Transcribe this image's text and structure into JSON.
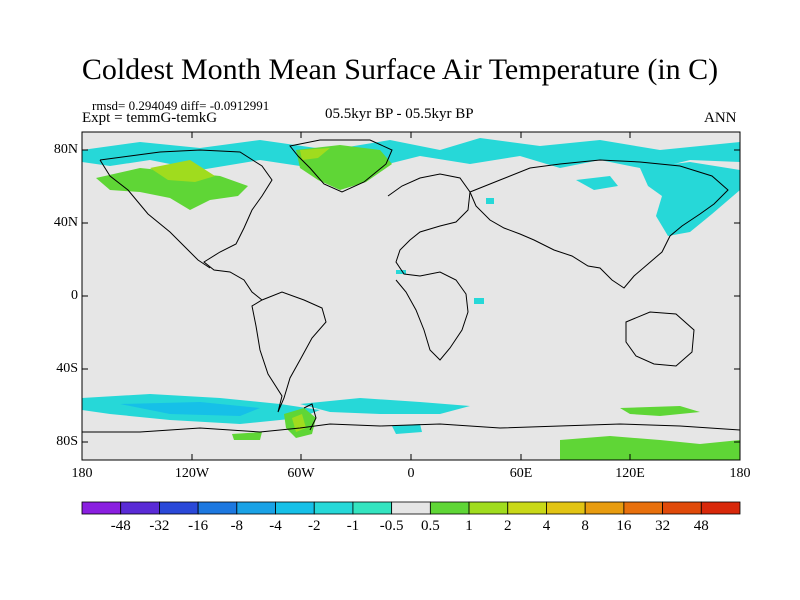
{
  "title": "Coldest Month Mean Surface Air Temperature (in C)",
  "stats_text": "rmsd= 0.294049 diff= -0.0912991",
  "expt_text": "Expt = temmG-temkG",
  "period_text": "05.5kyr BP - 05.5kyr BP",
  "season_text": "ANN",
  "lat_labels": [
    "80N",
    "40N",
    "0",
    "40S",
    "80S"
  ],
  "lon_labels": [
    "180",
    "120W",
    "60W",
    "0",
    "60E",
    "120E",
    "180"
  ],
  "colorbar": {
    "labels": [
      "-48",
      "-32",
      "-16",
      "-8",
      "-4",
      "-2",
      "-1",
      "-0.5",
      "0.5",
      "1",
      "2",
      "4",
      "8",
      "16",
      "32",
      "48"
    ],
    "colors": [
      "#8a1fe0",
      "#5a2bd6",
      "#2a48d8",
      "#1d78e0",
      "#1aa2e6",
      "#16c0e8",
      "#26d8d8",
      "#34e4c0",
      "#e6e6e6",
      "#5fd636",
      "#a0dc1e",
      "#c9d818",
      "#e2c414",
      "#e89c10",
      "#e8700c",
      "#e04a0a",
      "#d8280a"
    ]
  },
  "colors": {
    "neutral": "#e6e6e6",
    "cyan": "#26d8d8",
    "green": "#5fd636",
    "lightgreen": "#a0dc1e",
    "teal": "#16c0e8"
  }
}
